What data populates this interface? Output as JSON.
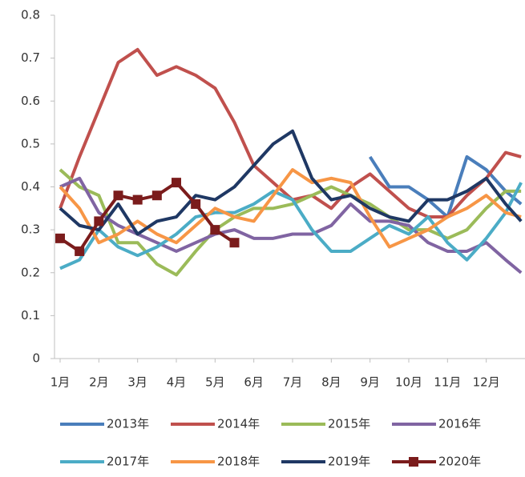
{
  "chart_data": {
    "type": "line",
    "x": [
      1,
      1.5,
      2,
      2.5,
      3,
      3.5,
      4,
      4.5,
      5,
      5.5,
      6,
      6.5,
      7,
      7.5,
      8,
      8.5,
      9,
      9.5,
      10,
      10.5,
      11,
      11.5,
      12,
      12.5,
      12.9
    ],
    "xlim": [
      0.855,
      13.0
    ],
    "xticks": [
      {
        "value": 1,
        "label": "1月"
      },
      {
        "value": 2,
        "label": "2月"
      },
      {
        "value": 3,
        "label": "3月"
      },
      {
        "value": 4,
        "label": "4月"
      },
      {
        "value": 5,
        "label": "5月"
      },
      {
        "value": 6,
        "label": "6月"
      },
      {
        "value": 7,
        "label": "7月"
      },
      {
        "value": 8,
        "label": "8月"
      },
      {
        "value": 9,
        "label": "9月"
      },
      {
        "value": 10,
        "label": "10月"
      },
      {
        "value": 11,
        "label": "11月"
      },
      {
        "value": 12,
        "label": "12月"
      }
    ],
    "ylim": [
      0,
      0.8
    ],
    "yticks": [
      0,
      0.1,
      0.2,
      0.3,
      0.4,
      0.5,
      0.6,
      0.7,
      0.8
    ],
    "legend": "bottom",
    "series": [
      {
        "name": "2013年",
        "color": "#4a7ebb",
        "values": [
          null,
          null,
          null,
          null,
          null,
          null,
          null,
          null,
          null,
          null,
          null,
          null,
          null,
          null,
          null,
          null,
          0.47,
          0.4,
          0.4,
          0.37,
          0.33,
          0.47,
          0.44,
          0.39,
          0.36
        ]
      },
      {
        "name": "2014年",
        "color": "#c0504d",
        "values": [
          0.35,
          0.47,
          0.58,
          0.69,
          0.72,
          0.66,
          0.68,
          0.66,
          0.63,
          0.55,
          0.45,
          0.41,
          0.37,
          0.38,
          0.35,
          0.4,
          0.43,
          0.39,
          0.35,
          0.33,
          0.33,
          0.38,
          0.42,
          0.48,
          0.47
        ]
      },
      {
        "name": "2015年",
        "color": "#9bbb59",
        "values": [
          0.44,
          0.4,
          0.38,
          0.27,
          0.27,
          0.22,
          0.195,
          0.25,
          0.3,
          0.33,
          0.35,
          0.35,
          0.36,
          0.38,
          0.4,
          0.38,
          0.36,
          0.33,
          0.3,
          0.3,
          0.28,
          0.3,
          0.35,
          0.39,
          0.39
        ]
      },
      {
        "name": "2016年",
        "color": "#8064a2",
        "values": [
          0.4,
          0.42,
          0.34,
          0.31,
          0.29,
          0.27,
          0.25,
          0.27,
          0.29,
          0.3,
          0.28,
          0.28,
          0.29,
          0.29,
          0.31,
          0.36,
          0.32,
          0.32,
          0.31,
          0.27,
          0.25,
          0.25,
          0.27,
          0.23,
          0.2
        ]
      },
      {
        "name": "2017年",
        "color": "#4bacc6",
        "values": [
          0.21,
          0.23,
          0.3,
          0.26,
          0.24,
          0.26,
          0.29,
          0.33,
          0.34,
          0.34,
          0.36,
          0.39,
          0.37,
          0.3,
          0.25,
          0.25,
          0.28,
          0.31,
          0.29,
          0.33,
          0.27,
          0.23,
          0.28,
          0.34,
          0.41
        ]
      },
      {
        "name": "2018年",
        "color": "#f79646",
        "values": [
          0.4,
          0.35,
          0.27,
          0.29,
          0.32,
          0.29,
          0.27,
          0.31,
          0.35,
          0.33,
          0.32,
          0.38,
          0.44,
          0.41,
          0.42,
          0.41,
          0.33,
          0.26,
          0.28,
          0.3,
          0.33,
          0.35,
          0.38,
          0.34,
          0.33
        ]
      },
      {
        "name": "2019年",
        "color": "#1f3864",
        "values": [
          0.35,
          0.31,
          0.3,
          0.36,
          0.29,
          0.32,
          0.33,
          0.38,
          0.37,
          0.4,
          0.45,
          0.5,
          0.53,
          0.42,
          0.37,
          0.38,
          0.35,
          0.33,
          0.32,
          0.37,
          0.37,
          0.39,
          0.42,
          0.36,
          0.32
        ]
      },
      {
        "name": "2020年",
        "color": "#7b1c1c",
        "marker": "square",
        "values": [
          0.28,
          0.25,
          0.32,
          0.38,
          0.37,
          0.38,
          0.41,
          0.36,
          0.3,
          0.27,
          null,
          null,
          null,
          null,
          null,
          null,
          null,
          null,
          null,
          null,
          null,
          null,
          null,
          null,
          null
        ]
      }
    ]
  }
}
